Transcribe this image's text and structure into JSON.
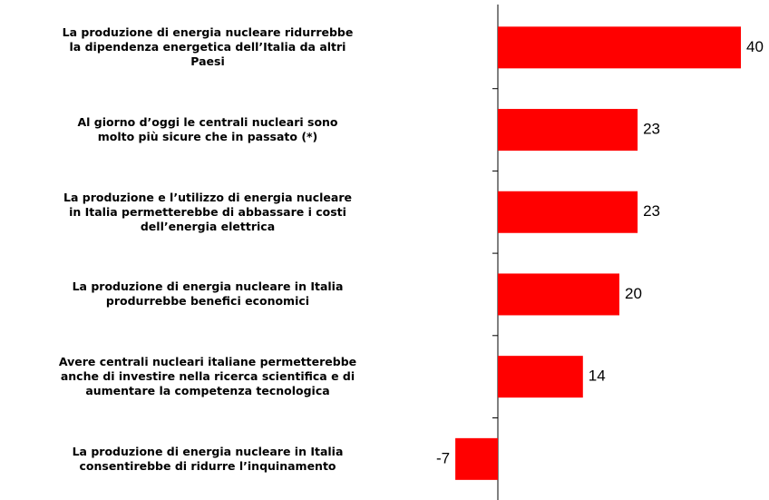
{
  "chart_data": {
    "type": "bar",
    "orientation": "horizontal",
    "color": "#ff0000",
    "categories": [
      "La produzione di energia nucleare ridurrebbe\nla dipendenza energetica dell’Italia da altri\nPaesi",
      "Al giorno d’oggi le centrali nucleari sono\nmolto più sicure che in passato (*)",
      "La produzione e l’utilizzo di energia nucleare\nin Italia permetterebbe di abbassare i costi\ndell’energia elettrica",
      "La produzione di energia nucleare in Italia\nprodurrebbe benefici economici",
      "Avere centrali nucleari italiane permetterebbe\nanche di investire nella ricerca scientifica e di\naumentare la competenza tecnologica",
      "La produzione di energia nucleare in Italia\nconsentirebbe di ridurre l’inquinamento"
    ],
    "values": [
      40,
      23,
      23,
      20,
      14,
      -7
    ]
  }
}
